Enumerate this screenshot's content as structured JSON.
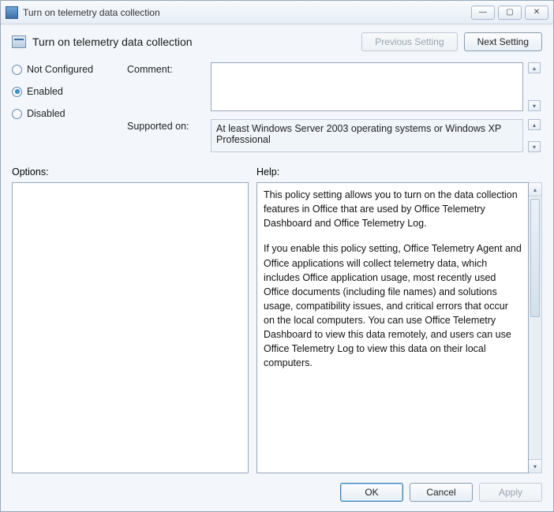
{
  "window": {
    "title": "Turn on telemetry data collection",
    "minimize_glyph": "—",
    "maximize_glyph": "▢",
    "close_glyph": "✕"
  },
  "header": {
    "title": "Turn on telemetry data collection",
    "prev_label": "Previous Setting",
    "next_label": "Next Setting"
  },
  "state": {
    "options": [
      {
        "key": "not_configured",
        "label": "Not Configured",
        "checked": false
      },
      {
        "key": "enabled",
        "label": "Enabled",
        "checked": true
      },
      {
        "key": "disabled",
        "label": "Disabled",
        "checked": false
      }
    ]
  },
  "fields": {
    "comment_label": "Comment:",
    "comment_value": "",
    "supported_label": "Supported on:",
    "supported_value": "At least Windows Server 2003 operating systems or Windows XP Professional"
  },
  "sections": {
    "options_label": "Options:",
    "help_label": "Help:"
  },
  "help": {
    "p1": "This policy setting allows you to turn on the data collection features in Office that are used by Office Telemetry Dashboard and Office Telemetry Log.",
    "p2": "If you enable this policy setting, Office Telemetry Agent and Office applications will collect telemetry data, which includes Office application usage, most recently used Office documents (including file names) and solutions usage, compatibility issues, and critical errors that occur on the local computers. You can use Office Telemetry Dashboard to view this data remotely, and users can use Office Telemetry Log to view this data on their local computers."
  },
  "footer": {
    "ok": "OK",
    "cancel": "Cancel",
    "apply": "Apply"
  },
  "glyphs": {
    "up": "▴",
    "down": "▾"
  },
  "style": {
    "window_bg": "#f3f7fb",
    "border": "#97a7ba",
    "accent": "#3c7fb1",
    "text": "#111111"
  }
}
